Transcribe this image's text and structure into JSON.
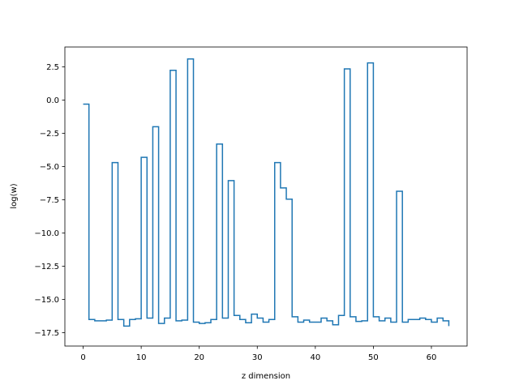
{
  "chart_data": {
    "type": "line",
    "drawstyle": "steps-post",
    "xlabel": "z dimension",
    "ylabel": "log(w)",
    "xlim": [
      -3.15,
      66.15
    ],
    "ylim": [
      -18.5,
      4.0
    ],
    "xticks": [
      0,
      10,
      20,
      30,
      40,
      50,
      60
    ],
    "xtick_labels": [
      "0",
      "10",
      "20",
      "30",
      "40",
      "50",
      "60"
    ],
    "yticks": [
      2.5,
      0.0,
      -2.5,
      -5.0,
      -7.5,
      -10.0,
      -12.5,
      -15.0,
      -17.5
    ],
    "ytick_labels": [
      "2.5",
      "0.0",
      "−2.5",
      "−5.0",
      "−7.5",
      "−10.0",
      "−12.5",
      "−15.0",
      "−17.5"
    ],
    "grid": false,
    "color": "#1f77b4",
    "series": [
      {
        "x": [
          0,
          1,
          2,
          3,
          4,
          5,
          6,
          7,
          8,
          9,
          10,
          11,
          12,
          13,
          14,
          15,
          16,
          17,
          18,
          19,
          20,
          21,
          22,
          23,
          24,
          25,
          26,
          27,
          28,
          29,
          30,
          31,
          32,
          33,
          34,
          35,
          36,
          37,
          38,
          39,
          40,
          41,
          42,
          43,
          44,
          45,
          46,
          47,
          48,
          49,
          50,
          51,
          52,
          53,
          54,
          55,
          56,
          57,
          58,
          59,
          60,
          61,
          62,
          63
        ],
        "values": [
          -0.3,
          -16.5,
          -16.6,
          -16.6,
          -16.55,
          -4.7,
          -16.5,
          -17.0,
          -16.5,
          -16.45,
          -4.3,
          -16.4,
          -2.0,
          -16.8,
          -16.4,
          2.25,
          -16.6,
          -16.55,
          3.1,
          -16.7,
          -16.8,
          -16.75,
          -16.5,
          -3.3,
          -16.4,
          -6.05,
          -16.2,
          -16.5,
          -16.75,
          -16.1,
          -16.4,
          -16.7,
          -16.5,
          -4.7,
          -6.6,
          -7.45,
          -16.3,
          -16.7,
          -16.55,
          -16.7,
          -16.7,
          -16.4,
          -16.6,
          -16.9,
          -16.2,
          2.35,
          -16.3,
          -16.65,
          -16.6,
          2.8,
          -16.3,
          -16.6,
          -16.4,
          -16.7,
          -6.85,
          -16.7,
          -16.5,
          -16.5,
          -16.4,
          -16.5,
          -16.7,
          -16.4,
          -16.6,
          -17.0
        ]
      }
    ]
  }
}
